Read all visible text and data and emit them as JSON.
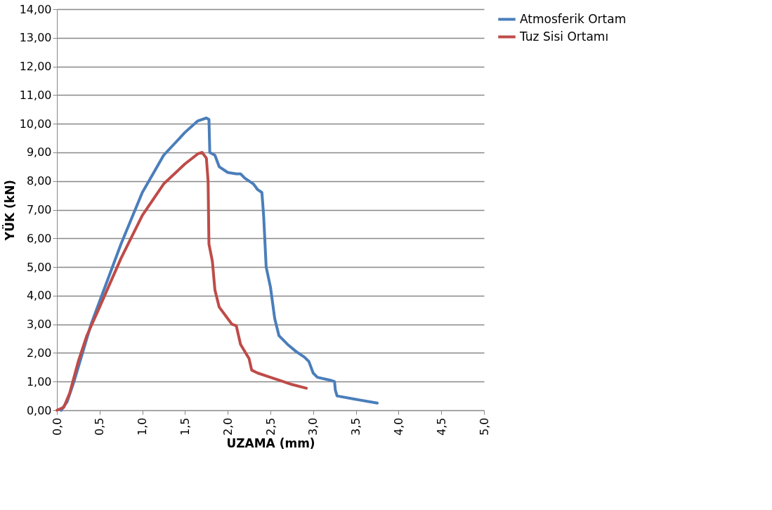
{
  "chart_data": {
    "type": "line",
    "xlabel": "UZAMA (mm)",
    "ylabel": "YÜK (kN)",
    "xlim": [
      0,
      5
    ],
    "ylim": [
      0,
      14
    ],
    "xticks": [
      {
        "value": 0,
        "label": "0,0"
      },
      {
        "value": 0.5,
        "label": "0,5"
      },
      {
        "value": 1,
        "label": "1,0"
      },
      {
        "value": 1.5,
        "label": "1,5"
      },
      {
        "value": 2,
        "label": "2,0"
      },
      {
        "value": 2.5,
        "label": "2,5"
      },
      {
        "value": 3,
        "label": "3,0"
      },
      {
        "value": 3.5,
        "label": "3,5"
      },
      {
        "value": 4,
        "label": "4,0"
      },
      {
        "value": 4.5,
        "label": "4,5"
      },
      {
        "value": 5,
        "label": "5,0"
      }
    ],
    "yticks": [
      {
        "value": 0,
        "label": "0,00"
      },
      {
        "value": 1,
        "label": "1,00"
      },
      {
        "value": 2,
        "label": "2,00"
      },
      {
        "value": 3,
        "label": "3,00"
      },
      {
        "value": 4,
        "label": "4,00"
      },
      {
        "value": 5,
        "label": "5,00"
      },
      {
        "value": 6,
        "label": "6,00"
      },
      {
        "value": 7,
        "label": "7,00"
      },
      {
        "value": 8,
        "label": "8,00"
      },
      {
        "value": 9,
        "label": "9,00"
      },
      {
        "value": 10,
        "label": "10,00"
      },
      {
        "value": 11,
        "label": "11,00"
      },
      {
        "value": 12,
        "label": "12,00"
      },
      {
        "value": 13,
        "label": "13,00"
      },
      {
        "value": 14,
        "label": "14,00"
      }
    ],
    "grid": "y",
    "legend": "right",
    "marker": "none",
    "line_style": "solid",
    "series": [
      {
        "name": "Atmosferik Ortam",
        "color": "#4a7ebb",
        "x": [
          0.05,
          0.12,
          0.2,
          0.3,
          0.4,
          0.5,
          0.75,
          1.0,
          1.25,
          1.5,
          1.65,
          1.75,
          1.78,
          1.79,
          1.85,
          1.9,
          2.0,
          2.1,
          2.15,
          2.2,
          2.3,
          2.35,
          2.4,
          2.42,
          2.45,
          2.5,
          2.55,
          2.6,
          2.7,
          2.8,
          2.9,
          2.95,
          3.0,
          3.05,
          3.2,
          3.25,
          3.26,
          3.28,
          3.5,
          3.75
        ],
        "values": [
          0,
          0.3,
          1.0,
          2.0,
          3.0,
          3.8,
          5.8,
          7.6,
          8.9,
          9.7,
          10.1,
          10.2,
          10.15,
          9.0,
          8.9,
          8.5,
          8.3,
          8.25,
          8.25,
          8.1,
          7.9,
          7.7,
          7.6,
          6.8,
          5.0,
          4.3,
          3.2,
          2.6,
          2.3,
          2.05,
          1.85,
          1.7,
          1.3,
          1.15,
          1.05,
          1.0,
          0.7,
          0.5,
          0.38,
          0.25
        ]
      },
      {
        "name": "Tuz Sisi Ortamı",
        "color": "#be4b48",
        "x": [
          0,
          0.08,
          0.15,
          0.25,
          0.35,
          0.5,
          0.75,
          1.0,
          1.25,
          1.5,
          1.65,
          1.7,
          1.75,
          1.77,
          1.78,
          1.82,
          1.85,
          1.9,
          2.0,
          2.05,
          2.1,
          2.15,
          2.25,
          2.28,
          2.35,
          2.5,
          2.6,
          2.75,
          2.92
        ],
        "values": [
          0,
          0.1,
          0.6,
          1.7,
          2.6,
          3.6,
          5.3,
          6.8,
          7.9,
          8.6,
          8.95,
          9.0,
          8.8,
          8.0,
          5.8,
          5.2,
          4.2,
          3.6,
          3.2,
          3.0,
          2.95,
          2.3,
          1.8,
          1.4,
          1.3,
          1.15,
          1.05,
          0.9,
          0.77
        ]
      }
    ]
  }
}
